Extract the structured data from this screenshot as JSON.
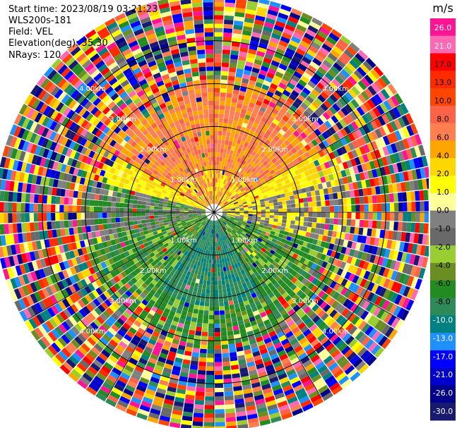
{
  "header": {
    "start_time": "Start time: 2023/08/19 03:21:23",
    "instrument": "WLS200s-181",
    "field": "Field: VEL",
    "elevation": "Elevation(deg): 35.30",
    "nrays": "NRays: 120"
  },
  "chart_data": {
    "type": "heatmap",
    "projection": "polar-ppi",
    "field": "VEL",
    "units": "m/s",
    "nrays": 120,
    "range_rings_km": [
      1.0,
      2.0,
      3.0,
      4.0
    ],
    "ring_label_km": [
      "1.00km",
      "2.00km",
      "3.00km",
      "4.00km"
    ],
    "azimuth_lines_deg": [
      0,
      30,
      60,
      90,
      120,
      150,
      180,
      210,
      240,
      270,
      300,
      330
    ],
    "max_range_km": 5.0,
    "colorbar": {
      "title": "m/s",
      "ticks": [
        "26.0",
        "21.0",
        "17.0",
        "13.0",
        "10.0",
        "8.0",
        "6.0",
        "4.0",
        "2.0",
        "1.0",
        "0.0",
        "-1.0",
        "-2.0",
        "-4.0",
        "-6.0",
        "-8.0",
        "-10.0",
        "-13.0",
        "-17.0",
        "-21.0",
        "-26.0",
        "-30.0"
      ],
      "colors_top_to_bottom": [
        "#ff1493",
        "#ff69b4",
        "#ff0000",
        "#ff2a00",
        "#ff4500",
        "#ff6347",
        "#ff7f50",
        "#ffa500",
        "#ffd700",
        "#ffff00",
        "#ffff99",
        "#808080",
        "#696969",
        "#9acd32",
        "#6b8e23",
        "#228b22",
        "#2e8b57",
        "#008080",
        "#1e90ff",
        "#0000ff",
        "#0000cd",
        "#00008b",
        "#191970"
      ]
    },
    "description": "Noisy outer ring (>3 km); coherent inner region: positive (orange/yellow) velocities north, near-zero grey band west-east, negative (green/teal) velocities south."
  }
}
